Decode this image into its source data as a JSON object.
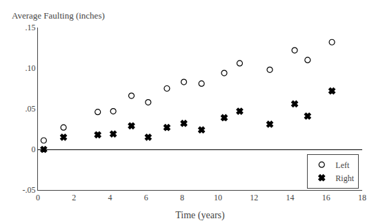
{
  "chart_data": {
    "type": "scatter",
    "xlabel": "Time (years)",
    "ylabel": "Average Faulting (inches)",
    "series": [
      {
        "name": "Left",
        "color": "#000000",
        "marker": "circle-open",
        "x": [
          0.32,
          1.42,
          3.32,
          4.18,
          5.19,
          6.12,
          7.16,
          8.1,
          9.08,
          10.34,
          11.2,
          12.87,
          14.25,
          14.97,
          16.32
        ],
        "values": [
          0.011,
          0.027,
          0.046,
          0.047,
          0.066,
          0.058,
          0.075,
          0.083,
          0.081,
          0.094,
          0.106,
          0.098,
          0.122,
          0.11,
          0.132
        ]
      },
      {
        "name": "Right",
        "color": "#000000",
        "marker": "x",
        "x": [
          0.32,
          1.42,
          3.32,
          4.18,
          5.19,
          6.12,
          7.16,
          8.1,
          9.08,
          10.34,
          11.2,
          12.87,
          14.25,
          14.97,
          16.32
        ],
        "values": [
          0,
          0.015,
          0.018,
          0.019,
          0.029,
          0.015,
          0.027,
          0.032,
          0.024,
          0.039,
          0.047,
          0.031,
          0.056,
          0.041,
          0.072
        ]
      }
    ],
    "xlim": [
      0,
      18
    ],
    "ylim": [
      -0.05,
      0.15
    ],
    "xticks": [
      0,
      2,
      4,
      6,
      8,
      10,
      12,
      14,
      16,
      18
    ],
    "yticks": [
      {
        "value": -0.05,
        "label": "-.05"
      },
      0,
      {
        "value": 0.05,
        "label": ".05"
      },
      {
        "value": 0.1,
        "label": ".10"
      },
      {
        "value": 0.15,
        "label": ".15"
      }
    ],
    "grid": false,
    "legend": "lower right"
  }
}
